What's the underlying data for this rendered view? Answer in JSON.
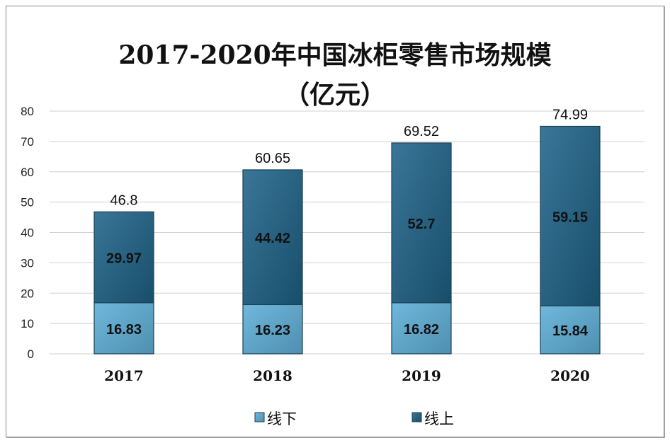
{
  "chart_data": {
    "type": "stacked-bar",
    "title": "2017-2020年中国冰柜零售市场规模",
    "subtitle": "（亿元）",
    "categories": [
      "2017",
      "2018",
      "2019",
      "2020"
    ],
    "series": [
      {
        "name": "线下",
        "values": [
          16.83,
          16.23,
          16.82,
          15.84
        ],
        "color": "#5fa9cf"
      },
      {
        "name": "线上",
        "values": [
          29.97,
          44.42,
          52.7,
          59.15
        ],
        "color": "#2f6a8c"
      }
    ],
    "totals": [
      "46.8",
      "60.65",
      "69.52",
      "74.99"
    ],
    "ylim": [
      0,
      80
    ],
    "yticks": [
      0,
      10,
      20,
      30,
      40,
      50,
      60,
      70,
      80
    ],
    "grid": true,
    "legend": "bottom"
  }
}
